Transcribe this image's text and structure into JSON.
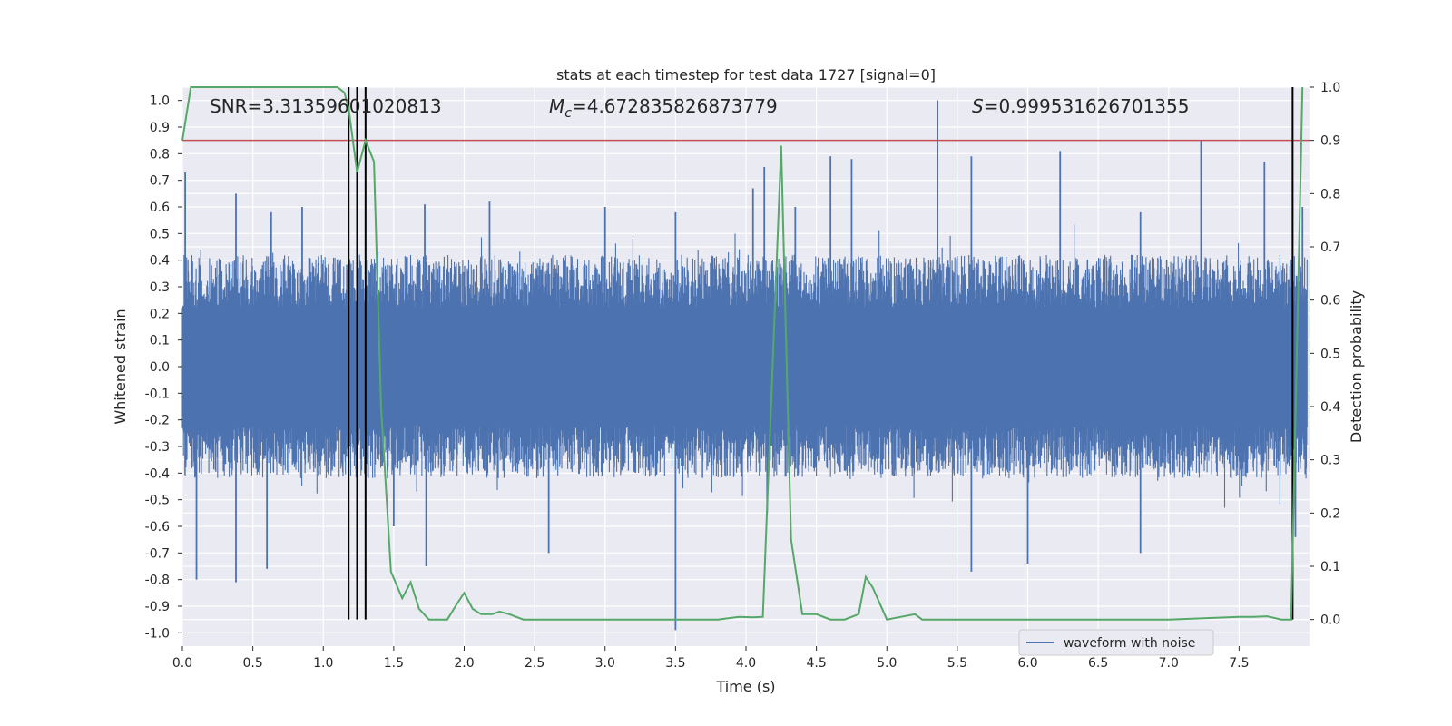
{
  "chart_data": {
    "type": "line",
    "title": "stats at each timestep for test data 1727 [signal=0]",
    "xlabel": "Time (s)",
    "ylabel_left": "Whitened strain",
    "ylabel_right": "Detection probability",
    "xlim": [
      0.0,
      8.0
    ],
    "ylim_left": [
      -1.05,
      1.05
    ],
    "ylim_right": [
      -0.05,
      1.0
    ],
    "x_ticks": [
      "0.0",
      "0.5",
      "1.0",
      "1.5",
      "2.0",
      "2.5",
      "3.0",
      "3.5",
      "4.0",
      "4.5",
      "5.0",
      "5.5",
      "6.0",
      "6.5",
      "7.0",
      "7.5"
    ],
    "y_left_ticks": [
      "-1.0",
      "-0.9",
      "-0.8",
      "-0.7",
      "-0.6",
      "-0.5",
      "-0.4",
      "-0.3",
      "-0.2",
      "-0.1",
      "0.0",
      "0.1",
      "0.2",
      "0.3",
      "0.4",
      "0.5",
      "0.6",
      "0.7",
      "0.8",
      "0.9",
      "1.0"
    ],
    "y_right_ticks": [
      "0.0",
      "0.1",
      "0.2",
      "0.3",
      "0.4",
      "0.5",
      "0.6",
      "0.7",
      "0.8",
      "0.9",
      "1.0"
    ],
    "grid": true,
    "legend": {
      "placement": "lower-right",
      "entries": [
        "waveform with noise"
      ]
    },
    "annotations": {
      "snr": "SNR=3.31359601020813",
      "mc_symbol": "M",
      "mc_sub": "c",
      "mc_value": "=4.672835826873779",
      "s_symbol": "S",
      "s_value": "=0.999531626701355"
    },
    "threshold": {
      "axis": "right",
      "value": 0.9,
      "color": "#c44e52"
    },
    "detection_lines_x": [
      1.18,
      1.24,
      1.3,
      7.88
    ],
    "colors": {
      "waveform": "#4c72b0",
      "probability": "#55a868",
      "threshold": "#c44e52",
      "vline": "#000000",
      "plot_bg": "#eaeaf2",
      "grid": "#ffffff"
    },
    "series": [
      {
        "name": "waveform with noise",
        "axis": "left",
        "kind": "noise-envelope",
        "envelope_typical_max": 0.4,
        "envelope_typical_min": -0.4,
        "peaks": [
          {
            "x": 0.02,
            "y": 0.73
          },
          {
            "x": 0.38,
            "y": 0.65
          },
          {
            "x": 0.63,
            "y": 0.58
          },
          {
            "x": 0.85,
            "y": 0.6
          },
          {
            "x": 1.72,
            "y": 0.61
          },
          {
            "x": 2.18,
            "y": 0.62
          },
          {
            "x": 3.0,
            "y": 0.6
          },
          {
            "x": 3.5,
            "y": 0.58
          },
          {
            "x": 4.05,
            "y": 0.67
          },
          {
            "x": 4.13,
            "y": 0.75
          },
          {
            "x": 4.35,
            "y": 0.6
          },
          {
            "x": 4.6,
            "y": 0.79
          },
          {
            "x": 4.75,
            "y": 0.78
          },
          {
            "x": 5.36,
            "y": 1.0
          },
          {
            "x": 5.6,
            "y": 0.79
          },
          {
            "x": 6.23,
            "y": 0.81
          },
          {
            "x": 6.8,
            "y": 0.58
          },
          {
            "x": 7.23,
            "y": 0.85
          },
          {
            "x": 7.68,
            "y": 0.77
          },
          {
            "x": 7.95,
            "y": 0.6
          }
        ],
        "troughs": [
          {
            "x": 0.1,
            "y": -0.8
          },
          {
            "x": 0.38,
            "y": -0.81
          },
          {
            "x": 0.6,
            "y": -0.76
          },
          {
            "x": 1.5,
            "y": -0.6
          },
          {
            "x": 1.73,
            "y": -0.75
          },
          {
            "x": 2.6,
            "y": -0.7
          },
          {
            "x": 3.5,
            "y": -0.99
          },
          {
            "x": 4.15,
            "y": -0.55
          },
          {
            "x": 5.6,
            "y": -0.77
          },
          {
            "x": 6.0,
            "y": -0.74
          },
          {
            "x": 6.8,
            "y": -0.7
          },
          {
            "x": 7.9,
            "y": -0.64
          }
        ]
      },
      {
        "name": "",
        "axis": "right",
        "x": [
          0.0,
          0.06,
          0.2,
          0.4,
          0.6,
          0.8,
          1.0,
          1.1,
          1.15,
          1.18,
          1.24,
          1.3,
          1.36,
          1.41,
          1.48,
          1.56,
          1.62,
          1.68,
          1.75,
          1.8,
          1.88,
          1.95,
          2.0,
          2.06,
          2.12,
          2.2,
          2.25,
          2.32,
          2.42,
          2.6,
          3.0,
          3.5,
          3.8,
          3.95,
          4.05,
          4.12,
          4.25,
          4.32,
          4.4,
          4.5,
          4.6,
          4.7,
          4.8,
          4.85,
          4.9,
          5.0,
          5.1,
          5.2,
          5.25,
          5.4,
          6.0,
          6.5,
          7.0,
          7.5,
          7.6,
          7.7,
          7.8,
          7.87,
          7.95
        ],
        "values": [
          0.9,
          1.0,
          1.0,
          1.0,
          1.0,
          1.0,
          1.0,
          1.0,
          0.99,
          0.96,
          0.84,
          0.9,
          0.86,
          0.4,
          0.09,
          0.04,
          0.07,
          0.02,
          0.0,
          0.0,
          0.0,
          0.03,
          0.05,
          0.02,
          0.01,
          0.01,
          0.015,
          0.01,
          0.0,
          0.0,
          0.0,
          0.0,
          0.0,
          0.005,
          0.004,
          0.005,
          0.89,
          0.15,
          0.01,
          0.01,
          0.0,
          0.0,
          0.01,
          0.08,
          0.06,
          0.0,
          0.005,
          0.01,
          0.0,
          0.0,
          0.0,
          0.0,
          0.0,
          0.005,
          0.005,
          0.006,
          0.0,
          0.0,
          1.0
        ]
      }
    ]
  }
}
